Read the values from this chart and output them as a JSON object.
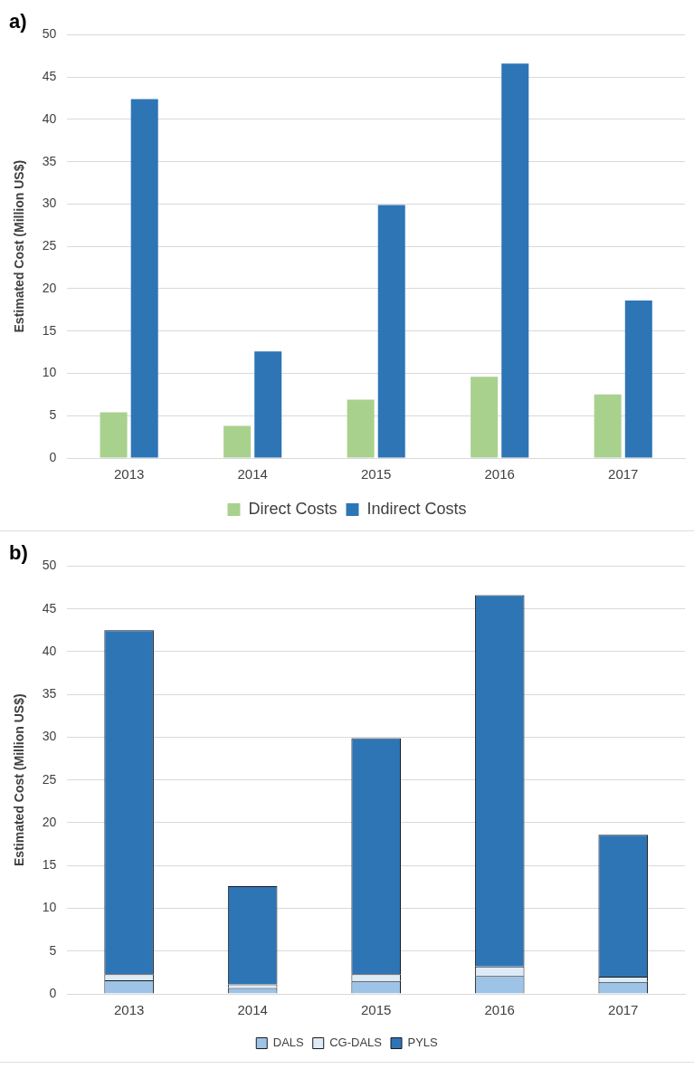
{
  "chart_data": [
    {
      "type": "bar",
      "title": "a)",
      "ylabel": "Estimated Cost (Million US$)",
      "categories": [
        "2013",
        "2014",
        "2015",
        "2016",
        "2017"
      ],
      "series": [
        {
          "name": "Direct Costs",
          "color": "#a9d18e",
          "values": [
            5.4,
            3.8,
            6.9,
            9.6,
            7.5
          ]
        },
        {
          "name": "Indirect Costs",
          "color": "#2e75b6",
          "values": [
            42.4,
            12.6,
            29.9,
            46.6,
            18.6
          ]
        }
      ],
      "ylim": [
        0,
        50
      ],
      "yticks": [
        0,
        5,
        10,
        15,
        20,
        25,
        30,
        35,
        40,
        45,
        50
      ],
      "grid": "y",
      "legend": "bottom"
    },
    {
      "type": "bar",
      "title": "b)",
      "ylabel": "Estimated Cost (Million US$)",
      "categories": [
        "2013",
        "2014",
        "2015",
        "2016",
        "2017"
      ],
      "stacked": true,
      "series": [
        {
          "name": "DALS",
          "color": "#9dc3e6",
          "values": [
            1.6,
            0.7,
            1.5,
            2.1,
            1.4
          ]
        },
        {
          "name": "CG-DALS",
          "color": "#deebf7",
          "values": [
            0.7,
            0.4,
            0.8,
            1.1,
            0.6
          ]
        },
        {
          "name": "PYLS",
          "color": "#2e75b6",
          "values": [
            40.2,
            11.5,
            27.6,
            43.4,
            16.6
          ]
        }
      ],
      "ylim": [
        0,
        50
      ],
      "yticks": [
        0,
        5,
        10,
        15,
        20,
        25,
        30,
        35,
        40,
        45,
        50
      ],
      "grid": "y",
      "legend": "bottom"
    }
  ]
}
